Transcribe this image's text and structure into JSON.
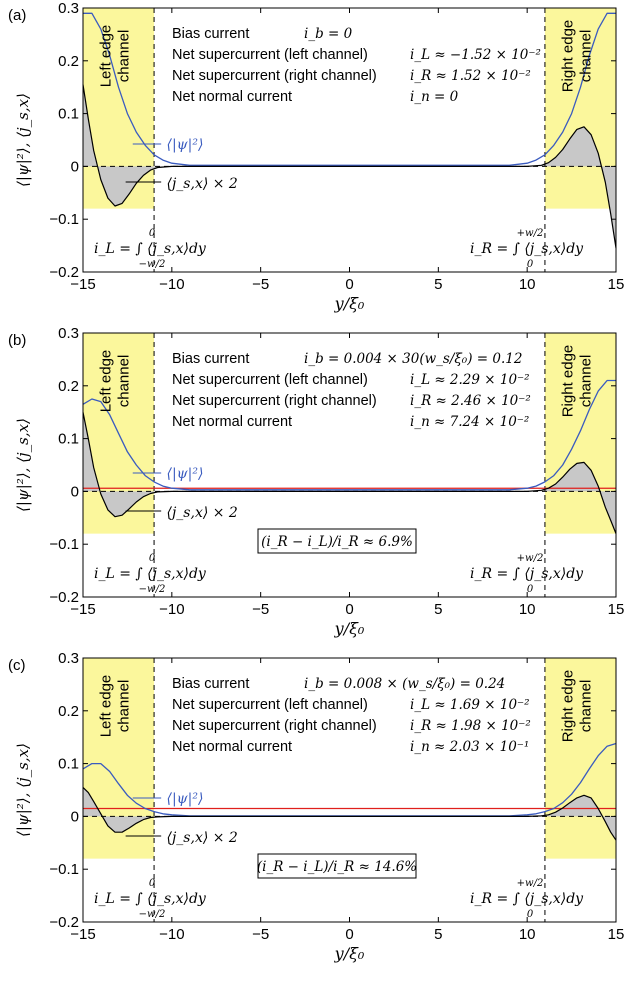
{
  "chart_data": [
    {
      "panel": "(a)",
      "type": "line",
      "xlabel": "y/ξ₀",
      "ylabel": "⟨|ψ|²⟩, ⟨j_s,x⟩",
      "xlim": [
        -15,
        15
      ],
      "ylim": [
        -0.2,
        0.3
      ],
      "x_ticks": [
        "−15",
        "−10",
        "−5",
        "0",
        "5",
        "10",
        "15"
      ],
      "y_ticks": [
        "−0.2",
        "−0.1",
        "0",
        "0.1",
        "0.2",
        "0.3"
      ],
      "edge_channels": {
        "left": [
          -15,
          -11
        ],
        "right": [
          11,
          15
        ]
      },
      "left_channel_label": [
        "Left edge",
        "channel"
      ],
      "right_channel_label": [
        "Right edge",
        "channel"
      ],
      "info_labels": [
        "Bias current",
        "Net supercurrent (left channel)",
        "Net supercurrent (right channel)",
        "Net normal current"
      ],
      "info_values": [
        "i_b = 0",
        "i_L ≈ −1.52 × 10⁻²",
        "i_R ≈ 1.52 × 10⁻²",
        "i_n = 0"
      ],
      "psi_label": "⟨|ψ|²⟩",
      "js_label": "⟨j_s,x⟩ × 2",
      "iL_formula": "i_L = ∫ ⟨j_s,x⟩dy",
      "iL_limits": [
        "0",
        "−w/2"
      ],
      "iR_formula": "i_R = ∫ ⟨j_s,x⟩dy",
      "iR_limits": [
        "+w/2",
        "0"
      ],
      "ratio": "",
      "normal_current_level": 0,
      "series": [
        {
          "name": "⟨|ψ|²⟩",
          "color": "#3a5bbf",
          "x": [
            -15,
            -14.5,
            -14,
            -13.5,
            -13,
            -12.5,
            -12,
            -11.5,
            -11,
            -10.5,
            -10,
            -9,
            9,
            10,
            10.5,
            11,
            11.5,
            12,
            12.5,
            13,
            13.5,
            14,
            14.5,
            15
          ],
          "y": [
            0.29,
            0.29,
            0.26,
            0.21,
            0.15,
            0.1,
            0.065,
            0.04,
            0.022,
            0.012,
            0.006,
            0.002,
            0.002,
            0.006,
            0.012,
            0.022,
            0.04,
            0.065,
            0.1,
            0.15,
            0.21,
            0.26,
            0.29,
            0.29
          ]
        },
        {
          "name": "⟨j_s,x⟩ × 2",
          "color": "#000000",
          "x": [
            -15,
            -14.7,
            -14.4,
            -14,
            -13.6,
            -13.2,
            -12.8,
            -12.4,
            -12,
            -11.6,
            -11.2,
            -10.8,
            -10,
            10,
            10.8,
            11.2,
            11.6,
            12,
            12.4,
            12.8,
            13.2,
            13.6,
            14,
            14.4,
            14.7,
            15
          ],
          "y": [
            0.155,
            0.09,
            0.03,
            -0.025,
            -0.06,
            -0.075,
            -0.07,
            -0.052,
            -0.032,
            -0.017,
            -0.007,
            -0.002,
            0,
            0,
            0.002,
            0.007,
            0.017,
            0.032,
            0.052,
            0.07,
            0.075,
            0.06,
            0.025,
            -0.03,
            -0.09,
            -0.155
          ]
        }
      ]
    },
    {
      "panel": "(b)",
      "type": "line",
      "xlabel": "y/ξ₀",
      "ylabel": "⟨|ψ|²⟩, ⟨j_s,x⟩",
      "xlim": [
        -15,
        15
      ],
      "ylim": [
        -0.2,
        0.3
      ],
      "x_ticks": [
        "−15",
        "−10",
        "−5",
        "0",
        "5",
        "10",
        "15"
      ],
      "y_ticks": [
        "−0.2",
        "−0.1",
        "0",
        "0.1",
        "0.2",
        "0.3"
      ],
      "edge_channels": {
        "left": [
          -15,
          -11
        ],
        "right": [
          11,
          15
        ]
      },
      "left_channel_label": [
        "Left edge",
        "channel"
      ],
      "right_channel_label": [
        "Right edge",
        "channel"
      ],
      "info_labels": [
        "Bias current",
        "Net supercurrent (left channel)",
        "Net supercurrent (right channel)",
        "Net normal current"
      ],
      "info_values": [
        "i_b = 0.004 × 30(w_s/ξ₀) = 0.12",
        "i_L ≈ 2.29 × 10⁻²",
        "i_R ≈ 2.46 × 10⁻²",
        "i_n ≈ 7.24 × 10⁻²"
      ],
      "psi_label": "⟨|ψ|²⟩",
      "js_label": "⟨j_s,x⟩ × 2",
      "iL_formula": "i_L = ∫ ⟨j_s,x⟩dy",
      "iL_limits": [
        "0",
        "−w/2"
      ],
      "iR_formula": "i_R = ∫ ⟨j_s,x⟩dy",
      "iR_limits": [
        "+w/2",
        "0"
      ],
      "ratio": "(i_R − i_L)/i_R ≈ 6.9%",
      "normal_current_level": 0.006,
      "series": [
        {
          "name": "⟨|ψ|²⟩",
          "color": "#3a5bbf",
          "x": [
            -15,
            -14.5,
            -14,
            -13.5,
            -13,
            -12.5,
            -12,
            -11.5,
            -11,
            -10.5,
            -10,
            -9,
            9,
            10,
            10.5,
            11,
            11.5,
            12,
            12.5,
            13,
            13.5,
            14,
            14.5,
            15
          ],
          "y": [
            0.165,
            0.175,
            0.17,
            0.145,
            0.11,
            0.075,
            0.05,
            0.03,
            0.018,
            0.01,
            0.006,
            0.003,
            0.003,
            0.006,
            0.01,
            0.018,
            0.03,
            0.05,
            0.08,
            0.115,
            0.155,
            0.19,
            0.21,
            0.21
          ]
        },
        {
          "name": "⟨j_s,x⟩ × 2",
          "color": "#000000",
          "x": [
            -15,
            -14.7,
            -14.4,
            -14,
            -13.6,
            -13.2,
            -12.8,
            -12.4,
            -12,
            -11.6,
            -11.2,
            -10.8,
            -10,
            10,
            10.8,
            11.2,
            11.6,
            12,
            12.4,
            12.8,
            13.2,
            13.6,
            14,
            14.4,
            14.7,
            15
          ],
          "y": [
            0.15,
            0.1,
            0.045,
            -0.005,
            -0.035,
            -0.048,
            -0.045,
            -0.033,
            -0.02,
            -0.01,
            -0.004,
            -0.001,
            0,
            0,
            0.002,
            0.006,
            0.014,
            0.027,
            0.042,
            0.053,
            0.055,
            0.04,
            0.01,
            -0.03,
            -0.055,
            -0.08
          ]
        }
      ]
    },
    {
      "panel": "(c)",
      "type": "line",
      "xlabel": "y/ξ₀",
      "ylabel": "⟨|ψ|²⟩, ⟨j_s,x⟩",
      "xlim": [
        -15,
        15
      ],
      "ylim": [
        -0.2,
        0.3
      ],
      "x_ticks": [
        "−15",
        "−10",
        "−5",
        "0",
        "5",
        "10",
        "15"
      ],
      "y_ticks": [
        "−0.2",
        "−0.1",
        "0",
        "0.1",
        "0.2",
        "0.3"
      ],
      "edge_channels": {
        "left": [
          -15,
          -11
        ],
        "right": [
          11,
          15
        ]
      },
      "left_channel_label": [
        "Left edge",
        "channel"
      ],
      "right_channel_label": [
        "Right edge",
        "channel"
      ],
      "info_labels": [
        "Bias current",
        "Net supercurrent (left channel)",
        "Net supercurrent (right channel)",
        "Net normal current"
      ],
      "info_values": [
        "i_b = 0.008 × (w_s/ξ₀) = 0.24",
        "i_L ≈ 1.69 × 10⁻²",
        "i_R ≈ 1.98 × 10⁻²",
        "i_n ≈ 2.03 × 10⁻¹"
      ],
      "psi_label": "⟨|ψ|²⟩",
      "js_label": "⟨j_s,x⟩ × 2",
      "iL_formula": "i_L = ∫ ⟨j_s,x⟩dy",
      "iL_limits": [
        "0",
        "−w/2"
      ],
      "iR_formula": "i_R = ∫ ⟨j_s,x⟩dy",
      "iR_limits": [
        "+w/2",
        "0"
      ],
      "ratio": "(i_R − i_L)/i_R ≈ 14.6%",
      "normal_current_level": 0.015,
      "series": [
        {
          "name": "⟨|ψ|²⟩",
          "color": "#3a5bbf",
          "x": [
            -15,
            -14.5,
            -14,
            -13.5,
            -13,
            -12.5,
            -12,
            -11.5,
            -11,
            -10.5,
            -10,
            -9,
            9,
            10,
            10.5,
            11,
            11.5,
            12,
            12.5,
            13,
            13.5,
            14,
            14.5,
            15
          ],
          "y": [
            0.09,
            0.1,
            0.1,
            0.085,
            0.062,
            0.04,
            0.025,
            0.015,
            0.009,
            0.005,
            0.003,
            0.001,
            0.001,
            0.003,
            0.005,
            0.009,
            0.015,
            0.026,
            0.042,
            0.064,
            0.09,
            0.115,
            0.133,
            0.138
          ]
        },
        {
          "name": "⟨j_s,x⟩ × 2",
          "color": "#000000",
          "x": [
            -15,
            -14.7,
            -14.4,
            -14,
            -13.6,
            -13.2,
            -12.8,
            -12.4,
            -12,
            -11.6,
            -11.2,
            -10.8,
            -10,
            10,
            10.8,
            11.2,
            11.6,
            12,
            12.4,
            12.8,
            13.2,
            13.6,
            14,
            14.4,
            14.7,
            15
          ],
          "y": [
            0.055,
            0.045,
            0.028,
            0.005,
            -0.018,
            -0.03,
            -0.03,
            -0.022,
            -0.013,
            -0.006,
            -0.002,
            -0.001,
            0,
            0,
            0.001,
            0.003,
            0.008,
            0.016,
            0.026,
            0.035,
            0.04,
            0.035,
            0.015,
            -0.01,
            -0.03,
            -0.045
          ]
        }
      ]
    }
  ]
}
